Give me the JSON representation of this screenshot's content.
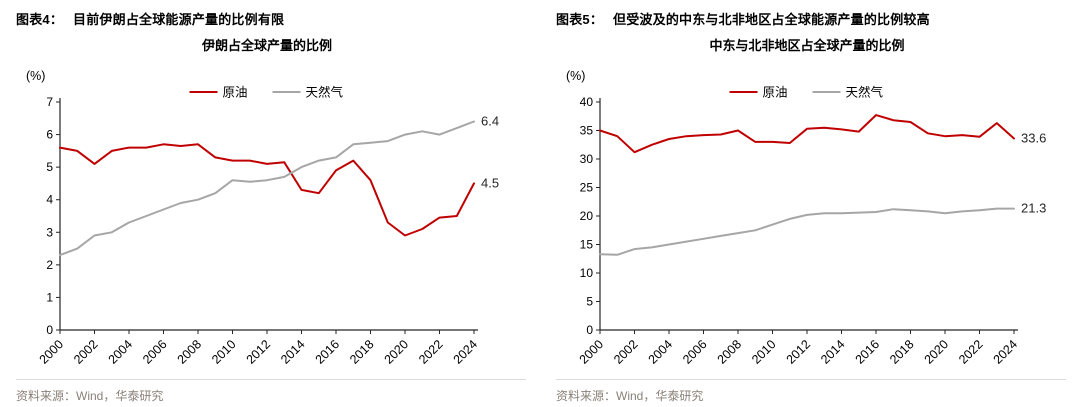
{
  "accent_colors": {
    "crude_oil": "#c00000",
    "natural_gas": "#a6a6a6",
    "axis": "#262626",
    "source_text": "#8a8178"
  },
  "panels": [
    {
      "header_label": "图表4：",
      "header_title": "目前伊朗占全球能源产量的比例有限",
      "source": "资料来源：Wind，华泰研究"
    },
    {
      "header_label": "图表5：",
      "header_title": "但受波及的中东与北非地区占全球能源产量的比例较高",
      "source": "资料来源：Wind，华泰研究"
    }
  ],
  "chart_data": [
    {
      "type": "line",
      "title": "伊朗占全球产量的比例",
      "xlabel": "",
      "ylabel": "(%)",
      "ylim": [
        0,
        7
      ],
      "ytick_step": 1,
      "xtick_step": 2,
      "grid": false,
      "legend_position": "top",
      "x": [
        2000,
        2001,
        2002,
        2003,
        2004,
        2005,
        2006,
        2007,
        2008,
        2009,
        2010,
        2011,
        2012,
        2013,
        2014,
        2015,
        2016,
        2017,
        2018,
        2019,
        2020,
        2021,
        2022,
        2023,
        2024
      ],
      "series": [
        {
          "name": "原油",
          "color": "#c00000",
          "values": [
            5.6,
            5.5,
            5.1,
            5.5,
            5.6,
            5.6,
            5.7,
            5.65,
            5.7,
            5.3,
            5.2,
            5.2,
            5.1,
            5.15,
            4.3,
            4.2,
            4.9,
            5.2,
            4.6,
            3.3,
            2.9,
            3.1,
            3.45,
            3.5,
            4.5
          ],
          "end_label": "4.5"
        },
        {
          "name": "天然气",
          "color": "#a6a6a6",
          "values": [
            2.3,
            2.5,
            2.9,
            3.0,
            3.3,
            3.5,
            3.7,
            3.9,
            4.0,
            4.2,
            4.6,
            4.55,
            4.6,
            4.7,
            5.0,
            5.2,
            5.3,
            5.7,
            5.75,
            5.8,
            6.0,
            6.1,
            6.0,
            6.2,
            6.4
          ],
          "end_label": "6.4"
        }
      ]
    },
    {
      "type": "line",
      "title": "中东与北非地区占全球产量的比例",
      "xlabel": "",
      "ylabel": "(%)",
      "ylim": [
        0,
        40
      ],
      "ytick_step": 5,
      "xtick_step": 2,
      "grid": false,
      "legend_position": "top",
      "x": [
        2000,
        2001,
        2002,
        2003,
        2004,
        2005,
        2006,
        2007,
        2008,
        2009,
        2010,
        2011,
        2012,
        2013,
        2014,
        2015,
        2016,
        2017,
        2018,
        2019,
        2020,
        2021,
        2022,
        2023,
        2024
      ],
      "series": [
        {
          "name": "原油",
          "color": "#c00000",
          "values": [
            35.0,
            34.0,
            31.2,
            32.5,
            33.5,
            34.0,
            34.2,
            34.3,
            35.0,
            33.0,
            33.0,
            32.8,
            35.3,
            35.5,
            35.2,
            34.8,
            37.7,
            36.8,
            36.5,
            34.5,
            34.0,
            34.2,
            33.9,
            36.3,
            33.6
          ],
          "end_label": "33.6"
        },
        {
          "name": "天然气",
          "color": "#a6a6a6",
          "values": [
            13.3,
            13.2,
            14.2,
            14.5,
            15.0,
            15.5,
            16.0,
            16.5,
            17.0,
            17.5,
            18.5,
            19.5,
            20.2,
            20.5,
            20.5,
            20.6,
            20.7,
            21.2,
            21.0,
            20.8,
            20.5,
            20.8,
            21.0,
            21.3,
            21.3
          ],
          "end_label": "21.3"
        }
      ]
    }
  ]
}
